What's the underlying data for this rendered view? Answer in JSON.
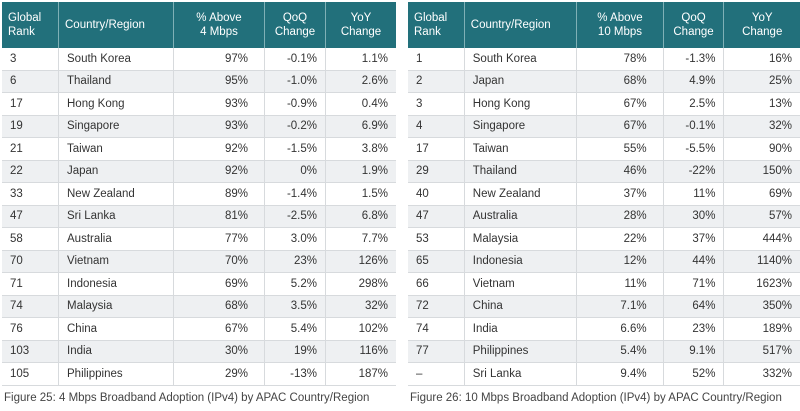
{
  "tables": [
    {
      "header": [
        [
          "Global",
          "Rank"
        ],
        [
          "Country/Region"
        ],
        [
          "% Above",
          "4 Mbps"
        ],
        [
          "QoQ",
          "Change"
        ],
        [
          "YoY",
          "Change"
        ]
      ],
      "rows": [
        [
          "3",
          "South Korea",
          "97%",
          "-0.1%",
          "1.1%"
        ],
        [
          "6",
          "Thailand",
          "95%",
          "-1.0%",
          "2.6%"
        ],
        [
          "17",
          "Hong Kong",
          "93%",
          "-0.9%",
          "0.4%"
        ],
        [
          "19",
          "Singapore",
          "93%",
          "-0.2%",
          "6.9%"
        ],
        [
          "21",
          "Taiwan",
          "92%",
          "-1.5%",
          "3.8%"
        ],
        [
          "22",
          "Japan",
          "92%",
          "0%",
          "1.9%"
        ],
        [
          "33",
          "New Zealand",
          "89%",
          "-1.4%",
          "1.5%"
        ],
        [
          "47",
          "Sri Lanka",
          "81%",
          "-2.5%",
          "6.8%"
        ],
        [
          "58",
          "Australia",
          "77%",
          "3.0%",
          "7.7%"
        ],
        [
          "70",
          "Vietnam",
          "70%",
          "23%",
          "126%"
        ],
        [
          "71",
          "Indonesia",
          "69%",
          "5.2%",
          "298%"
        ],
        [
          "74",
          "Malaysia",
          "68%",
          "3.5%",
          "32%"
        ],
        [
          "76",
          "China",
          "67%",
          "5.4%",
          "102%"
        ],
        [
          "103",
          "India",
          "30%",
          "19%",
          "116%"
        ],
        [
          "105",
          "Philippines",
          "29%",
          "-13%",
          "187%"
        ]
      ],
      "caption": "Figure 25: 4 Mbps Broadband Adoption (IPv4) by APAC Country/Region"
    },
    {
      "header": [
        [
          "Global",
          "Rank"
        ],
        [
          "Country/Region"
        ],
        [
          "% Above",
          "10 Mbps"
        ],
        [
          "QoQ",
          "Change"
        ],
        [
          "YoY",
          "Change"
        ]
      ],
      "rows": [
        [
          "1",
          "South Korea",
          "78%",
          "-1.3%",
          "16%"
        ],
        [
          "2",
          "Japan",
          "68%",
          "4.9%",
          "25%"
        ],
        [
          "3",
          "Hong Kong",
          "67%",
          "2.5%",
          "13%"
        ],
        [
          "4",
          "Singapore",
          "67%",
          "-0.1%",
          "32%"
        ],
        [
          "17",
          "Taiwan",
          "55%",
          "-5.5%",
          "90%"
        ],
        [
          "29",
          "Thailand",
          "46%",
          "-22%",
          "150%"
        ],
        [
          "40",
          "New Zealand",
          "37%",
          "11%",
          "69%"
        ],
        [
          "47",
          "Australia",
          "28%",
          "30%",
          "57%"
        ],
        [
          "53",
          "Malaysia",
          "22%",
          "37%",
          "444%"
        ],
        [
          "65",
          "Indonesia",
          "12%",
          "44%",
          "1140%"
        ],
        [
          "66",
          "Vietnam",
          "11%",
          "71%",
          "1623%"
        ],
        [
          "72",
          "China",
          "7.1%",
          "64%",
          "350%"
        ],
        [
          "74",
          "India",
          "6.6%",
          "23%",
          "189%"
        ],
        [
          "77",
          "Philippines",
          "5.4%",
          "9.1%",
          "517%"
        ],
        [
          "–",
          "Sri Lanka",
          "9.4%",
          "52%",
          "332%"
        ]
      ],
      "caption": "Figure 26: 10 Mbps Broadband Adoption (IPv4) by APAC Country/Region"
    }
  ]
}
